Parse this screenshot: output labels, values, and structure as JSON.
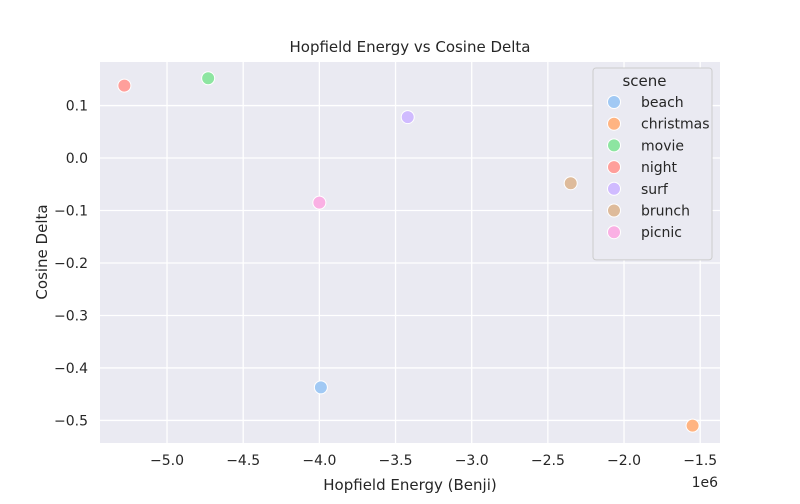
{
  "chart_data": {
    "type": "scatter",
    "title": "Hopfield Energy vs Cosine Delta",
    "xlabel": "Hopfield Energy (Benji)",
    "ylabel": "Cosine Delta",
    "x_scale_label": "1e6",
    "x_unit_multiplier": 1000000,
    "xlim": [
      -5440000,
      -1370000
    ],
    "ylim": [
      -0.543,
      0.183
    ],
    "x_ticks": [
      -5.0,
      -4.5,
      -4.0,
      -3.5,
      -3.0,
      -2.5,
      -2.0,
      -1.5
    ],
    "x_tick_labels": [
      "−5.0",
      "−4.5",
      "−4.0",
      "−3.5",
      "−3.0",
      "−2.5",
      "−2.0",
      "−1.5"
    ],
    "y_ticks": [
      0.1,
      0.0,
      -0.1,
      -0.2,
      -0.3,
      -0.4,
      -0.5
    ],
    "y_tick_labels": [
      "0.1",
      "0.0",
      "−0.1",
      "−0.2",
      "−0.3",
      "−0.4",
      "−0.5"
    ],
    "grid": true,
    "legend_title": "scene",
    "legend_position": "top-right",
    "series": [
      {
        "name": "beach",
        "color": "#a1c9f4",
        "x": -3990000,
        "y": -0.437
      },
      {
        "name": "christmas",
        "color": "#ffb482",
        "x": -1550000,
        "y": -0.51
      },
      {
        "name": "movie",
        "color": "#8de5a1",
        "x": -4730000,
        "y": 0.152
      },
      {
        "name": "night",
        "color": "#ff9f9b",
        "x": -5280000,
        "y": 0.138
      },
      {
        "name": "surf",
        "color": "#d0bbff",
        "x": -3420000,
        "y": 0.078
      },
      {
        "name": "brunch",
        "color": "#debb9b",
        "x": -2350000,
        "y": -0.048
      },
      {
        "name": "picnic",
        "color": "#fab0e4",
        "x": -4000000,
        "y": -0.085
      }
    ]
  },
  "colors": {
    "plot_background": "#eaeaf2",
    "grid": "#ffffff",
    "text": "#262626"
  }
}
